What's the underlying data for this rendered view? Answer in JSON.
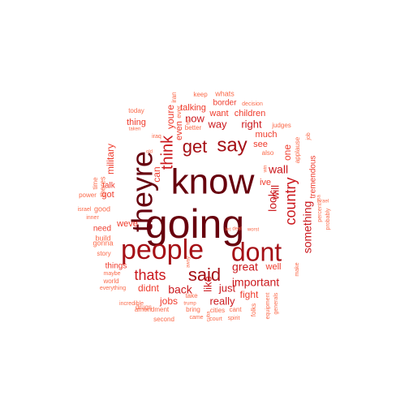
{
  "palette": {
    "c1": "#67000D",
    "c2": "#A50F15",
    "c3": "#CB181D",
    "c4": "#EF3B2C",
    "c5": "#FB6A4A"
  },
  "words": [
    {
      "text": "going",
      "color": "c1"
    },
    {
      "text": "know",
      "color": "c1"
    },
    {
      "text": "theyre",
      "color": "c1"
    },
    {
      "text": "people",
      "color": "c2"
    },
    {
      "text": "dont",
      "color": "c2"
    },
    {
      "text": "said",
      "color": "c2"
    },
    {
      "text": "say",
      "color": "c2"
    },
    {
      "text": "get",
      "color": "c2"
    },
    {
      "text": "thats",
      "color": "c3"
    },
    {
      "text": "think",
      "color": "c3"
    },
    {
      "text": "country",
      "color": "c3"
    },
    {
      "text": "back",
      "color": "c3"
    },
    {
      "text": "wall",
      "color": "c3"
    },
    {
      "text": "great",
      "color": "c3"
    },
    {
      "text": "look",
      "color": "c3"
    },
    {
      "text": "something",
      "color": "c3"
    },
    {
      "text": "important",
      "color": "c3"
    },
    {
      "text": "will",
      "color": "c3"
    },
    {
      "text": "right",
      "color": "c3"
    },
    {
      "text": "way",
      "color": "c3"
    },
    {
      "text": "like",
      "color": "c3"
    },
    {
      "text": "just",
      "color": "c3"
    },
    {
      "text": "really",
      "color": "c3"
    },
    {
      "text": "now",
      "color": "c3"
    },
    {
      "text": "youre",
      "color": "c4"
    },
    {
      "text": "one",
      "color": "c4"
    },
    {
      "text": "can",
      "color": "c4"
    },
    {
      "text": "didnt",
      "color": "c4"
    },
    {
      "text": "fight",
      "color": "c4"
    },
    {
      "text": "jobs",
      "color": "c4"
    },
    {
      "text": "military",
      "color": "c4"
    },
    {
      "text": "talking",
      "color": "c4"
    },
    {
      "text": "see",
      "color": "c4"
    },
    {
      "text": "much",
      "color": "c4"
    },
    {
      "text": "want",
      "color": "c4"
    },
    {
      "text": "well",
      "color": "c4"
    },
    {
      "text": "got",
      "color": "c4"
    },
    {
      "text": "weve",
      "color": "c4"
    },
    {
      "text": "ive",
      "color": "c4"
    },
    {
      "text": "even",
      "color": "c4"
    },
    {
      "text": "thing",
      "color": "c4"
    },
    {
      "text": "children",
      "color": "c4"
    },
    {
      "text": "tremendous",
      "color": "c4"
    },
    {
      "text": "talk",
      "color": "c4"
    },
    {
      "text": "border",
      "color": "c4"
    },
    {
      "text": "need",
      "color": "c4"
    },
    {
      "text": "things",
      "color": "c4"
    },
    {
      "text": "good",
      "color": "c5"
    },
    {
      "text": "theres",
      "color": "c5"
    },
    {
      "text": "whats",
      "color": "c5"
    },
    {
      "text": "keep",
      "color": "c5"
    },
    {
      "text": "today",
      "color": "c5"
    },
    {
      "text": "iran",
      "color": "c5"
    },
    {
      "text": "ever",
      "color": "c5"
    },
    {
      "text": "better",
      "color": "c5"
    },
    {
      "text": "judges",
      "color": "c5"
    },
    {
      "text": "also",
      "color": "c5"
    },
    {
      "text": "applause",
      "color": "c5"
    },
    {
      "text": "power",
      "color": "c5"
    },
    {
      "text": "time",
      "color": "c5"
    },
    {
      "text": "israel",
      "color": "c5"
    },
    {
      "text": "inner",
      "color": "c5"
    },
    {
      "text": "build",
      "color": "c5"
    },
    {
      "text": "gonna",
      "color": "c5"
    },
    {
      "text": "story",
      "color": "c5"
    },
    {
      "text": "maybe",
      "color": "c5"
    },
    {
      "text": "world",
      "color": "c5"
    },
    {
      "text": "everything",
      "color": "c5"
    },
    {
      "text": "incredible",
      "color": "c5"
    },
    {
      "text": "drugs",
      "color": "c5"
    },
    {
      "text": "amendment",
      "color": "c5"
    },
    {
      "text": "bring",
      "color": "c5"
    },
    {
      "text": "cities",
      "color": "c5"
    },
    {
      "text": "cant",
      "color": "c5"
    },
    {
      "text": "second",
      "color": "c5"
    },
    {
      "text": "came",
      "color": "c5"
    },
    {
      "text": "spirit",
      "color": "c5"
    },
    {
      "text": "court",
      "color": "c5"
    },
    {
      "text": "folks",
      "color": "c5"
    },
    {
      "text": "equipment",
      "color": "c5"
    },
    {
      "text": "generals",
      "color": "c5"
    },
    {
      "text": "make",
      "color": "c5"
    },
    {
      "text": "percent",
      "color": "c5"
    },
    {
      "text": "probably",
      "color": "c5"
    },
    {
      "text": "job",
      "color": "c5"
    },
    {
      "text": "decision",
      "color": "c5"
    },
    {
      "text": "take",
      "color": "c5"
    },
    {
      "text": "trump",
      "color": "c5"
    },
    {
      "text": "iraq",
      "color": "c5"
    },
    {
      "text": "taken",
      "color": "c5"
    },
    {
      "text": "old",
      "color": "c5"
    },
    {
      "text": "let",
      "color": "c5"
    },
    {
      "text": "deal",
      "color": "c5"
    },
    {
      "text": "worst",
      "color": "c5"
    },
    {
      "text": "away",
      "color": "c5"
    },
    {
      "text": "tell",
      "color": "c5"
    },
    {
      "text": "win",
      "color": "c5"
    },
    {
      "text": "usa",
      "color": "c5"
    },
    {
      "text": "israel",
      "color": "c5"
    },
    {
      "text": "cuba",
      "color": "c5"
    }
  ]
}
